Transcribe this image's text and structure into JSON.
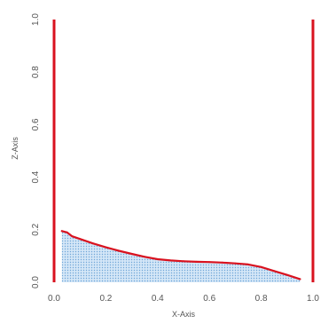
{
  "chart_data": {
    "type": "area",
    "title": "",
    "xlabel": "X-Axis",
    "ylabel": "Z-Axis",
    "xlim": [
      0,
      1
    ],
    "ylim": [
      0,
      1
    ],
    "x_ticks": [
      "0.0",
      "0.2",
      "0.4",
      "0.6",
      "0.8",
      "1.0"
    ],
    "y_ticks": [
      "0.0",
      "0.2",
      "0.4",
      "0.6",
      "0.8",
      "1.0"
    ],
    "grid": false,
    "legend": "none",
    "colors": {
      "line": "#d9121f",
      "fill": "#b9d7f2",
      "fill_dots": "#6fa6d8",
      "axes": "#d9121f",
      "text": "#555555"
    },
    "series": [
      {
        "x": [
          0.03,
          0.05,
          0.07,
          0.1,
          0.15,
          0.2,
          0.25,
          0.3,
          0.35,
          0.4,
          0.45,
          0.5,
          0.55,
          0.6,
          0.65,
          0.7,
          0.75,
          0.8,
          0.85,
          0.9,
          0.95
        ],
        "y": [
          0.195,
          0.19,
          0.175,
          0.165,
          0.148,
          0.133,
          0.12,
          0.108,
          0.097,
          0.088,
          0.083,
          0.08,
          0.078,
          0.077,
          0.075,
          0.072,
          0.068,
          0.058,
          0.043,
          0.028,
          0.012
        ]
      }
    ]
  }
}
